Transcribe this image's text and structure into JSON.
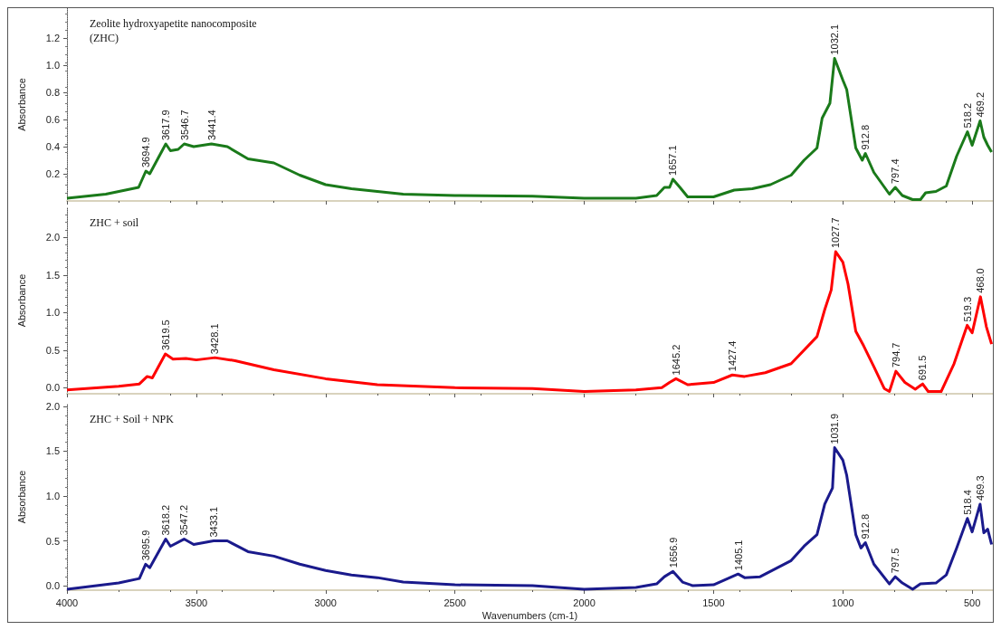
{
  "chart_data": [
    {
      "type": "line",
      "title": "Zeolite hydroxyapetite nanocomposite\n(ZHC)",
      "ylabel": "Absorbance",
      "xlim": [
        4000,
        420
      ],
      "xticks": [
        4000,
        3500,
        3000,
        2500,
        2000,
        1500,
        1000,
        500
      ],
      "ylim": [
        0,
        1.42
      ],
      "yticks": [
        0.2,
        0.4,
        0.6,
        0.8,
        {
          "value": 1,
          "label": "1.0"
        },
        1.2
      ],
      "tick_labels": "y",
      "grid": false,
      "marker": "none",
      "series": [
        {
          "color": "#1a7a1a",
          "x": [
            4000,
            3850,
            3723,
            3694.9,
            3680,
            3617.9,
            3600,
            3570,
            3546.7,
            3510,
            3441.4,
            3380,
            3300,
            3200,
            3100,
            3000,
            2900,
            2800,
            2700,
            2500,
            2200,
            2000,
            1800,
            1720,
            1690,
            1670,
            1657.1,
            1630,
            1600,
            1500,
            1420,
            1350,
            1280,
            1200,
            1150,
            1100,
            1080,
            1050,
            1032.1,
            1000,
            985,
            950,
            925,
            912.8,
            880,
            820,
            797.4,
            770,
            730,
            700,
            680,
            640,
            600,
            560,
            518.2,
            500,
            469.2,
            455,
            440,
            425
          ],
          "values": [
            0.02,
            0.05,
            0.1,
            0.22,
            0.2,
            0.42,
            0.37,
            0.38,
            0.42,
            0.4,
            0.42,
            0.4,
            0.31,
            0.28,
            0.19,
            0.12,
            0.09,
            0.07,
            0.05,
            0.04,
            0.035,
            0.02,
            0.02,
            0.04,
            0.1,
            0.1,
            0.16,
            0.1,
            0.03,
            0.03,
            0.08,
            0.09,
            0.12,
            0.19,
            0.3,
            0.39,
            0.61,
            0.72,
            1.05,
            0.89,
            0.82,
            0.39,
            0.3,
            0.35,
            0.21,
            0.05,
            0.1,
            0.04,
            0.01,
            0.01,
            0.06,
            0.07,
            0.11,
            0.33,
            0.51,
            0.41,
            0.59,
            0.47,
            0.41,
            0.36
          ]
        }
      ],
      "annotations": [
        {
          "text": "3694.9",
          "x": 3694.9,
          "y": 0.22
        },
        {
          "text": "3617.9",
          "x": 3617.9,
          "y": 0.42
        },
        {
          "text": "3546.7",
          "x": 3546.7,
          "y": 0.42
        },
        {
          "text": "3441.4",
          "x": 3441.4,
          "y": 0.42
        },
        {
          "text": "1657.1",
          "x": 1657.1,
          "y": 0.16
        },
        {
          "text": "1032.1",
          "x": 1032.1,
          "y": 1.05
        },
        {
          "text": "912.8",
          "x": 912.8,
          "y": 0.35
        },
        {
          "text": "797.4",
          "x": 797.4,
          "y": 0.1
        },
        {
          "text": "518.2",
          "x": 518.2,
          "y": 0.51
        },
        {
          "text": "469.2",
          "x": 469.2,
          "y": 0.59
        }
      ]
    },
    {
      "type": "line",
      "title": "ZHC + soil",
      "ylabel": "Absorbance",
      "xlim": [
        4000,
        420
      ],
      "xticks": [
        4000,
        3500,
        3000,
        2500,
        2000,
        1500,
        1000,
        500
      ],
      "ylim": [
        -0.08,
        2.4
      ],
      "yticks": [
        {
          "value": 0,
          "label": "0.0"
        },
        0.5,
        {
          "value": 1,
          "label": "1.0"
        },
        1.5,
        {
          "value": 2,
          "label": "2.0"
        }
      ],
      "tick_labels": "y",
      "grid": false,
      "marker": "none",
      "series": [
        {
          "color": "#ff0000",
          "x": [
            4000,
            3800,
            3720,
            3690,
            3670,
            3619.5,
            3590,
            3540,
            3500,
            3428.1,
            3350,
            3200,
            3000,
            2800,
            2500,
            2200,
            2000,
            1800,
            1700,
            1670,
            1645.2,
            1600,
            1500,
            1427.4,
            1380,
            1300,
            1200,
            1100,
            1070,
            1045,
            1027.7,
            1000,
            980,
            950,
            920,
            880,
            840,
            820,
            794.7,
            760,
            720,
            691.5,
            670,
            620,
            570,
            519.3,
            500,
            468.0,
            445,
            425
          ],
          "values": [
            -0.03,
            0.02,
            0.05,
            0.15,
            0.13,
            0.45,
            0.38,
            0.39,
            0.37,
            0.4,
            0.36,
            0.24,
            0.12,
            0.04,
            0.0,
            -0.01,
            -0.05,
            -0.03,
            0.0,
            0.07,
            0.12,
            0.04,
            0.07,
            0.17,
            0.15,
            0.2,
            0.32,
            0.68,
            1.04,
            1.3,
            1.81,
            1.67,
            1.38,
            0.75,
            0.56,
            0.28,
            -0.01,
            -0.05,
            0.22,
            0.07,
            -0.02,
            0.05,
            -0.05,
            -0.05,
            0.32,
            0.83,
            0.73,
            1.21,
            0.81,
            0.58
          ]
        }
      ],
      "annotations": [
        {
          "text": "3619.5",
          "x": 3619.5,
          "y": 0.45
        },
        {
          "text": "3428.1",
          "x": 3428.1,
          "y": 0.4
        },
        {
          "text": "1645.2",
          "x": 1645.2,
          "y": 0.12
        },
        {
          "text": "1427.4",
          "x": 1427.4,
          "y": 0.17
        },
        {
          "text": "1027.7",
          "x": 1027.7,
          "y": 1.81
        },
        {
          "text": "794.7",
          "x": 794.7,
          "y": 0.22
        },
        {
          "text": "691.5",
          "x": 691.5,
          "y": 0.05
        },
        {
          "text": "519.3",
          "x": 519.3,
          "y": 0.83
        },
        {
          "text": "468.0",
          "x": 468.0,
          "y": 1.21
        }
      ]
    },
    {
      "type": "line",
      "title": "ZHC + Soil + NPK",
      "xlabel": "Wavenumbers (cm-1)",
      "ylabel": "Absorbance",
      "xlim": [
        4000,
        420
      ],
      "xticks": [
        4000,
        3500,
        3000,
        2500,
        2000,
        1500,
        1000,
        500
      ],
      "ylim": [
        -0.05,
        2.03
      ],
      "yticks": [
        {
          "value": 0,
          "label": "0.0"
        },
        0.5,
        {
          "value": 1,
          "label": "1.0"
        },
        1.5,
        {
          "value": 2,
          "label": "2.0"
        }
      ],
      "grid": false,
      "marker": "none",
      "series": [
        {
          "color": "#1a1a8c",
          "x": [
            4000,
            3800,
            3720,
            3695.9,
            3680,
            3618.2,
            3600,
            3547.2,
            3510,
            3433.1,
            3380,
            3300,
            3200,
            3100,
            3000,
            2900,
            2800,
            2700,
            2500,
            2200,
            2000,
            1800,
            1720,
            1690,
            1656.9,
            1620,
            1580,
            1500,
            1405.1,
            1380,
            1320,
            1200,
            1150,
            1100,
            1070,
            1040,
            1031.9,
            1000,
            985,
            950,
            930,
            912.8,
            880,
            820,
            797.5,
            770,
            730,
            700,
            640,
            600,
            560,
            518.4,
            500,
            469.3,
            455,
            440,
            425
          ],
          "values": [
            -0.04,
            0.03,
            0.08,
            0.24,
            0.2,
            0.52,
            0.44,
            0.52,
            0.46,
            0.5,
            0.5,
            0.38,
            0.33,
            0.24,
            0.17,
            0.12,
            0.09,
            0.04,
            0.01,
            0.0,
            -0.04,
            -0.02,
            0.02,
            0.1,
            0.16,
            0.04,
            0.0,
            0.01,
            0.13,
            0.09,
            0.1,
            0.28,
            0.44,
            0.57,
            0.91,
            1.09,
            1.54,
            1.4,
            1.23,
            0.57,
            0.42,
            0.48,
            0.24,
            0.02,
            0.1,
            0.03,
            -0.04,
            0.02,
            0.03,
            0.12,
            0.42,
            0.75,
            0.6,
            0.91,
            0.59,
            0.63,
            0.46
          ]
        }
      ],
      "annotations": [
        {
          "text": "3695.9",
          "x": 3695.9,
          "y": 0.24
        },
        {
          "text": "3618.2",
          "x": 3618.2,
          "y": 0.52
        },
        {
          "text": "3547.2",
          "x": 3547.2,
          "y": 0.52
        },
        {
          "text": "3433.1",
          "x": 3433.1,
          "y": 0.5
        },
        {
          "text": "1656.9",
          "x": 1656.9,
          "y": 0.16
        },
        {
          "text": "1405.1",
          "x": 1405.1,
          "y": 0.13
        },
        {
          "text": "1031.9",
          "x": 1031.9,
          "y": 1.54
        },
        {
          "text": "912.8",
          "x": 912.8,
          "y": 0.48
        },
        {
          "text": "797.5",
          "x": 797.5,
          "y": 0.1
        },
        {
          "text": "518.4",
          "x": 518.4,
          "y": 0.75
        },
        {
          "text": "469.3",
          "x": 469.3,
          "y": 0.91
        }
      ]
    }
  ]
}
